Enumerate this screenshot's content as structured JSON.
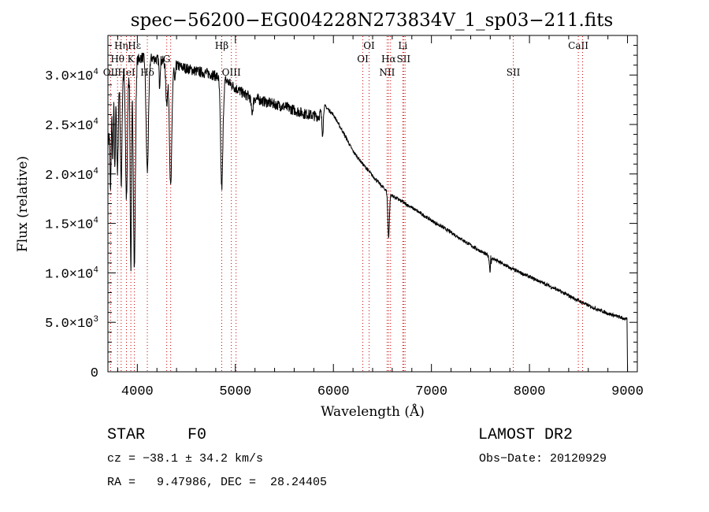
{
  "chart_data": {
    "type": "line",
    "title": "spec−56200−EG004228N273834V_1_sp03−211.fits",
    "xlabel": "Wavelength (Å)",
    "ylabel": "Flux (relative)",
    "xlim": [
      3700,
      9100
    ],
    "ylim": [
      0,
      34000
    ],
    "x_ticks": [
      {
        "value": 4000,
        "label": "4000"
      },
      {
        "value": 5000,
        "label": "5000"
      },
      {
        "value": 6000,
        "label": "6000"
      },
      {
        "value": 7000,
        "label": "7000"
      },
      {
        "value": 8000,
        "label": "8000"
      },
      {
        "value": 9000,
        "label": "9000"
      }
    ],
    "y_ticks": [
      {
        "value": 0,
        "mant": "0",
        "exp": ""
      },
      {
        "value": 5000,
        "mant": "5.0×10",
        "exp": "3"
      },
      {
        "value": 10000,
        "mant": "1.0×10",
        "exp": "4"
      },
      {
        "value": 15000,
        "mant": "1.5×10",
        "exp": "4"
      },
      {
        "value": 20000,
        "mant": "2.0×10",
        "exp": "4"
      },
      {
        "value": 25000,
        "mant": "2.5×10",
        "exp": "4"
      },
      {
        "value": 30000,
        "mant": "3.0×10",
        "exp": "4"
      }
    ],
    "line_color": "#cc0000",
    "lines": [
      {
        "wave": 3727,
        "name": "OII",
        "row": 3
      },
      {
        "wave": 3798,
        "name": "Hθ",
        "row": 2
      },
      {
        "wave": 3835,
        "name": "Hη",
        "row": 1
      },
      {
        "wave": 3889,
        "name": "HeI",
        "row": 3
      },
      {
        "wave": 3934,
        "name": "K",
        "row": 2
      },
      {
        "wave": 3970,
        "name": "Hε",
        "row": 1
      },
      {
        "wave": 4102,
        "name": "Hδ",
        "row": 3
      },
      {
        "wave": 4300,
        "name": "G",
        "row": 2
      },
      {
        "wave": 4340,
        "name": "",
        "row": 0
      },
      {
        "wave": 4861,
        "name": "Hβ",
        "row": 1
      },
      {
        "wave": 4959,
        "name": "OIII",
        "row": 3
      },
      {
        "wave": 5007,
        "name": "",
        "row": 0
      },
      {
        "wave": 6300,
        "name": "OI",
        "row": 2
      },
      {
        "wave": 6364,
        "name": "OI",
        "row": 1
      },
      {
        "wave": 6548,
        "name": "NII",
        "row": 3
      },
      {
        "wave": 6563,
        "name": "Hα",
        "row": 2
      },
      {
        "wave": 6583,
        "name": "",
        "row": 0
      },
      {
        "wave": 6708,
        "name": "Li",
        "row": 1
      },
      {
        "wave": 6716,
        "name": "SII",
        "row": 2
      },
      {
        "wave": 6731,
        "name": "",
        "row": 0
      },
      {
        "wave": 7835,
        "name": "SII",
        "row": 3
      },
      {
        "wave": 8498,
        "name": "CaII",
        "row": 1
      },
      {
        "wave": 8542,
        "name": "",
        "row": 0
      }
    ],
    "continuum": [
      [
        3700,
        23000
      ],
      [
        3760,
        27500
      ],
      [
        3820,
        29500
      ],
      [
        3880,
        30600
      ],
      [
        3950,
        31300
      ],
      [
        4050,
        31800
      ],
      [
        4150,
        31700
      ],
      [
        4300,
        31300
      ],
      [
        4450,
        30800
      ],
      [
        4600,
        30400
      ],
      [
        4750,
        30100
      ],
      [
        4900,
        29500
      ],
      [
        5000,
        28700
      ],
      [
        5100,
        28000
      ],
      [
        5300,
        27300
      ],
      [
        5500,
        26800
      ],
      [
        5700,
        26100
      ],
      [
        5850,
        25800
      ],
      [
        5900,
        27000
      ],
      [
        6000,
        26000
      ],
      [
        6100,
        24200
      ],
      [
        6200,
        22300
      ],
      [
        6300,
        21000
      ],
      [
        6400,
        19800
      ],
      [
        6500,
        18700
      ],
      [
        6600,
        17800
      ],
      [
        6700,
        17200
      ],
      [
        6800,
        16600
      ],
      [
        7000,
        15300
      ],
      [
        7200,
        14100
      ],
      [
        7400,
        12800
      ],
      [
        7600,
        11600
      ],
      [
        7800,
        10500
      ],
      [
        8000,
        9600
      ],
      [
        8200,
        8700
      ],
      [
        8400,
        7700
      ],
      [
        8600,
        6700
      ],
      [
        8800,
        5900
      ],
      [
        8990,
        5300
      ]
    ],
    "absorption": [
      {
        "wave": 3727,
        "depth": 7000,
        "width": 5
      },
      {
        "wave": 3750,
        "depth": 6000,
        "width": 4
      },
      {
        "wave": 3771,
        "depth": 8000,
        "width": 5
      },
      {
        "wave": 3798,
        "depth": 9000,
        "width": 7
      },
      {
        "wave": 3835,
        "depth": 11000,
        "width": 8
      },
      {
        "wave": 3889,
        "depth": 13000,
        "width": 10
      },
      {
        "wave": 3934,
        "depth": 20500,
        "width": 7
      },
      {
        "wave": 3970,
        "depth": 21000,
        "width": 10
      },
      {
        "wave": 4102,
        "depth": 11500,
        "width": 12
      },
      {
        "wave": 4227,
        "depth": 2500,
        "width": 5
      },
      {
        "wave": 4300,
        "depth": 4000,
        "width": 10
      },
      {
        "wave": 4340,
        "depth": 12500,
        "width": 12
      },
      {
        "wave": 4383,
        "depth": 2000,
        "width": 5
      },
      {
        "wave": 4861,
        "depth": 11000,
        "width": 12
      },
      {
        "wave": 5170,
        "depth": 1500,
        "width": 10
      },
      {
        "wave": 5890,
        "depth": 2500,
        "width": 8
      },
      {
        "wave": 6563,
        "depth": 4500,
        "width": 8
      },
      {
        "wave": 7600,
        "depth": 1500,
        "width": 8
      }
    ],
    "emission": [
      {
        "wave": 7605,
        "height": 1500,
        "width": 2
      }
    ],
    "end_drop": {
      "wave": 9000,
      "value": 0
    }
  },
  "info": {
    "class_label": "STAR",
    "subclass": "F0",
    "survey": "LAMOST DR2",
    "cz_line": "cz = −38.1 ± 34.2 km/s",
    "obs_date": "Obs−Date: 20120929",
    "radec_line": "RA =   9.47986, DEC =  28.24405"
  }
}
